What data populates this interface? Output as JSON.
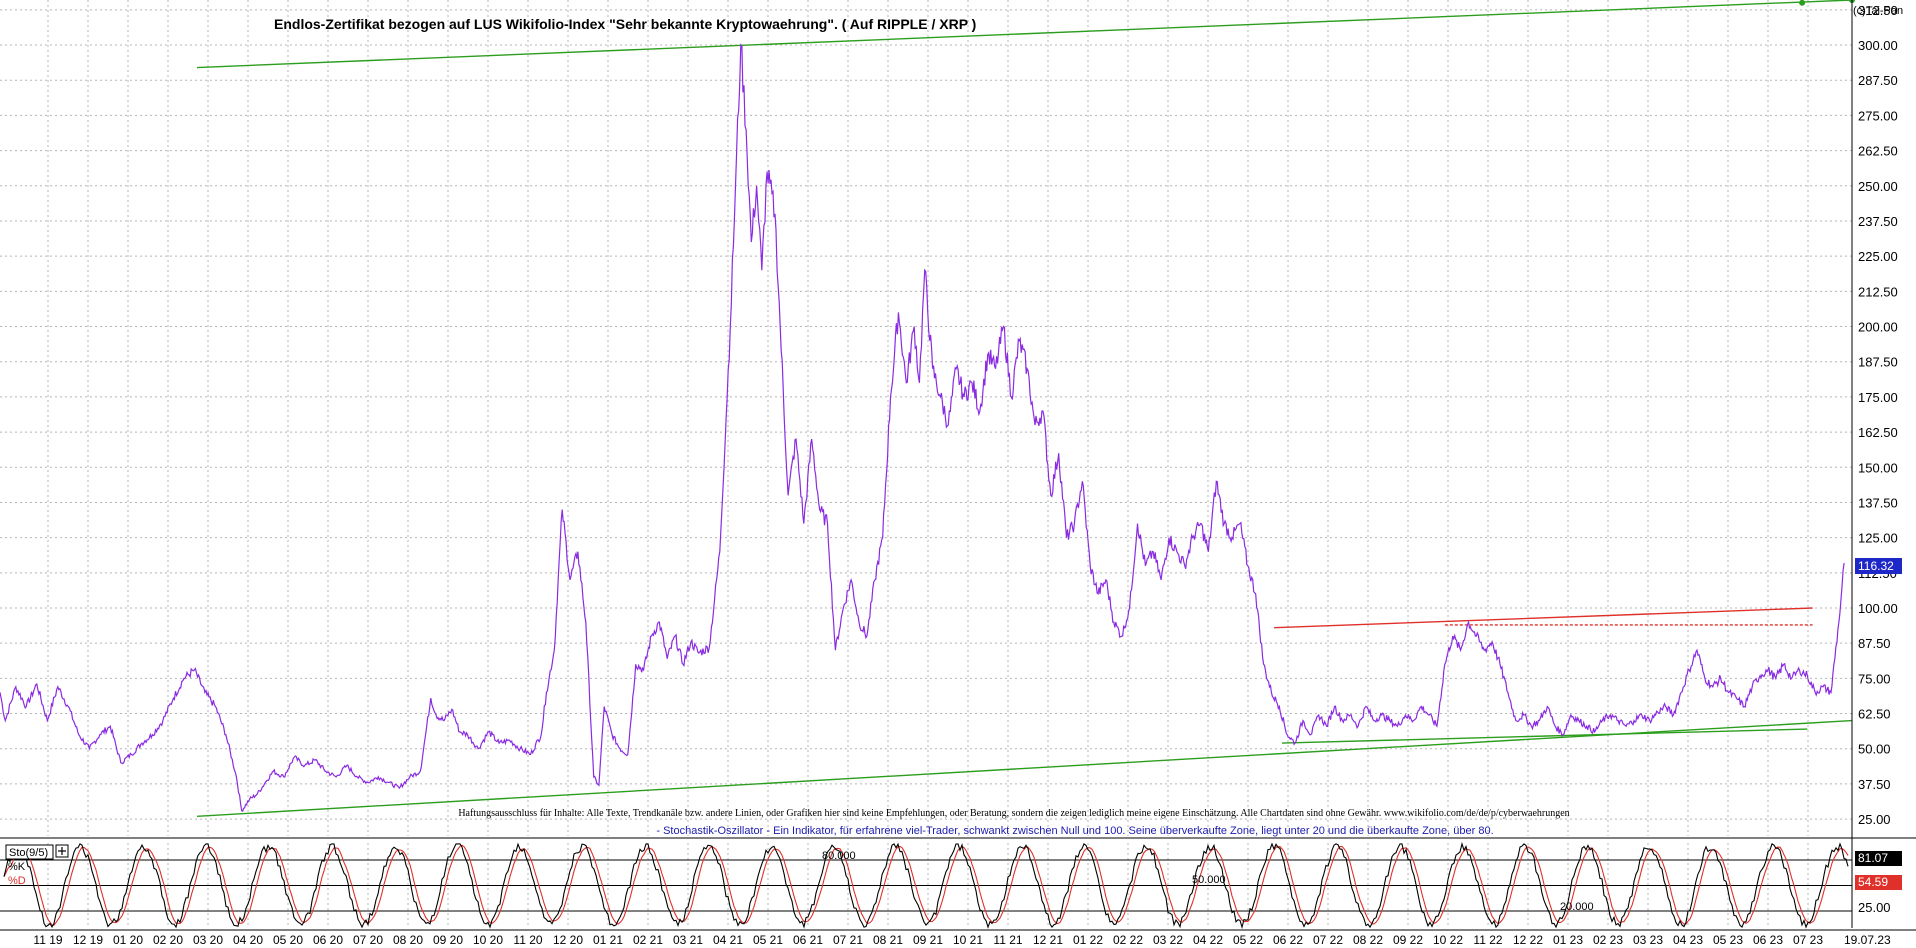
{
  "copyright": "(c)Tai-Pan",
  "chart_data": [
    {
      "type": "line",
      "title": "Endlos-Zertifikat bezogen auf LUS Wikifolio-Index \"Sehr bekannte Kryptowaehrung\". ( Auf RIPPLE / XRP )",
      "ylim": [
        19,
        316
      ],
      "y_ticks": [
        "312.50",
        "300.00",
        "287.50",
        "275.00",
        "262.50",
        "250.00",
        "237.50",
        "225.00",
        "212.50",
        "200.00",
        "187.50",
        "175.00",
        "162.50",
        "150.00",
        "137.50",
        "125.00",
        "112.50",
        "100.00",
        "87.50",
        "75.00",
        "62.50",
        "50.00",
        "37.50",
        "25.00"
      ],
      "x_ticks": [
        "11 19",
        "12 19",
        "01 20",
        "02 20",
        "03 20",
        "04 20",
        "05 20",
        "06 20",
        "07 20",
        "08 20",
        "09 20",
        "10 20",
        "11 20",
        "12 20",
        "01 21",
        "02 21",
        "03 21",
        "04 21",
        "05 21",
        "06 21",
        "07 21",
        "08 21",
        "09 21",
        "10 21",
        "11 21",
        "12 21",
        "01 22",
        "02 22",
        "03 22",
        "04 22",
        "05 22",
        "06 22",
        "07 22",
        "08 22",
        "09 22",
        "10 22",
        "11 22",
        "12 22",
        "01 23",
        "02 23",
        "03 23",
        "04 23",
        "05 23",
        "06 23",
        "07 23"
      ],
      "x_end_label": "19.07.23",
      "last_value": "116.32",
      "grid": true,
      "series": [],
      "price": [
        [
          0,
          70
        ],
        [
          2,
          60
        ],
        [
          6,
          72
        ],
        [
          10,
          65
        ],
        [
          14,
          73
        ],
        [
          18,
          60
        ],
        [
          22,
          72
        ],
        [
          26,
          65
        ],
        [
          30,
          55
        ],
        [
          34,
          50
        ],
        [
          38,
          55
        ],
        [
          42,
          58
        ],
        [
          46,
          45
        ],
        [
          50,
          48
        ],
        [
          54,
          52
        ],
        [
          58,
          55
        ],
        [
          62,
          60
        ],
        [
          66,
          68
        ],
        [
          70,
          75
        ],
        [
          74,
          78
        ],
        [
          78,
          70
        ],
        [
          82,
          65
        ],
        [
          86,
          55
        ],
        [
          90,
          40
        ],
        [
          92,
          28
        ],
        [
          95,
          32
        ],
        [
          98,
          34
        ],
        [
          101,
          38
        ],
        [
          104,
          42
        ],
        [
          108,
          40
        ],
        [
          112,
          47
        ],
        [
          116,
          44
        ],
        [
          120,
          46
        ],
        [
          124,
          42
        ],
        [
          128,
          40
        ],
        [
          132,
          44
        ],
        [
          136,
          40
        ],
        [
          140,
          38
        ],
        [
          144,
          40
        ],
        [
          148,
          38
        ],
        [
          152,
          36
        ],
        [
          156,
          40
        ],
        [
          160,
          42
        ],
        [
          162,
          55
        ],
        [
          164,
          68
        ],
        [
          166,
          62
        ],
        [
          169,
          60
        ],
        [
          172,
          64
        ],
        [
          175,
          56
        ],
        [
          178,
          55
        ],
        [
          182,
          50
        ],
        [
          186,
          56
        ],
        [
          190,
          52
        ],
        [
          194,
          53
        ],
        [
          198,
          50
        ],
        [
          202,
          48
        ],
        [
          206,
          55
        ],
        [
          208,
          70
        ],
        [
          211,
          85
        ],
        [
          214,
          135
        ],
        [
          217,
          110
        ],
        [
          220,
          120
        ],
        [
          223,
          95
        ],
        [
          226,
          40
        ],
        [
          228,
          37
        ],
        [
          230,
          65
        ],
        [
          233,
          55
        ],
        [
          236,
          50
        ],
        [
          239,
          48
        ],
        [
          242,
          80
        ],
        [
          245,
          78
        ],
        [
          248,
          90
        ],
        [
          251,
          95
        ],
        [
          254,
          82
        ],
        [
          257,
          90
        ],
        [
          260,
          80
        ],
        [
          263,
          88
        ],
        [
          266,
          84
        ],
        [
          270,
          86
        ],
        [
          274,
          120
        ],
        [
          278,
          200
        ],
        [
          280,
          250
        ],
        [
          282,
          300
        ],
        [
          284,
          270
        ],
        [
          286,
          230
        ],
        [
          288,
          250
        ],
        [
          290,
          220
        ],
        [
          292,
          255
        ],
        [
          295,
          240
        ],
        [
          297,
          200
        ],
        [
          300,
          140
        ],
        [
          303,
          160
        ],
        [
          306,
          130
        ],
        [
          309,
          160
        ],
        [
          312,
          135
        ],
        [
          315,
          130
        ],
        [
          318,
          85
        ],
        [
          321,
          100
        ],
        [
          324,
          110
        ],
        [
          327,
          95
        ],
        [
          330,
          90
        ],
        [
          333,
          110
        ],
        [
          336,
          125
        ],
        [
          339,
          175
        ],
        [
          342,
          205
        ],
        [
          345,
          180
        ],
        [
          348,
          200
        ],
        [
          350,
          180
        ],
        [
          352,
          220
        ],
        [
          355,
          185
        ],
        [
          358,
          175
        ],
        [
          361,
          165
        ],
        [
          364,
          185
        ],
        [
          367,
          175
        ],
        [
          370,
          180
        ],
        [
          373,
          170
        ],
        [
          376,
          190
        ],
        [
          379,
          185
        ],
        [
          382,
          200
        ],
        [
          385,
          175
        ],
        [
          388,
          195
        ],
        [
          391,
          185
        ],
        [
          394,
          165
        ],
        [
          397,
          170
        ],
        [
          400,
          140
        ],
        [
          403,
          155
        ],
        [
          406,
          125
        ],
        [
          409,
          130
        ],
        [
          412,
          145
        ],
        [
          415,
          115
        ],
        [
          418,
          105
        ],
        [
          421,
          110
        ],
        [
          424,
          95
        ],
        [
          427,
          90
        ],
        [
          430,
          100
        ],
        [
          433,
          130
        ],
        [
          436,
          115
        ],
        [
          439,
          120
        ],
        [
          442,
          110
        ],
        [
          445,
          125
        ],
        [
          448,
          120
        ],
        [
          451,
          115
        ],
        [
          454,
          125
        ],
        [
          457,
          130
        ],
        [
          460,
          120
        ],
        [
          463,
          145
        ],
        [
          466,
          130
        ],
        [
          469,
          125
        ],
        [
          472,
          130
        ],
        [
          475,
          115
        ],
        [
          478,
          105
        ],
        [
          481,
          80
        ],
        [
          484,
          70
        ],
        [
          487,
          65
        ],
        [
          490,
          55
        ],
        [
          493,
          52
        ],
        [
          496,
          60
        ],
        [
          499,
          55
        ],
        [
          502,
          62
        ],
        [
          505,
          58
        ],
        [
          508,
          65
        ],
        [
          511,
          60
        ],
        [
          514,
          62
        ],
        [
          517,
          58
        ],
        [
          520,
          65
        ],
        [
          523,
          60
        ],
        [
          526,
          62
        ],
        [
          529,
          60
        ],
        [
          532,
          58
        ],
        [
          535,
          62
        ],
        [
          538,
          60
        ],
        [
          541,
          65
        ],
        [
          544,
          62
        ],
        [
          547,
          58
        ],
        [
          550,
          80
        ],
        [
          553,
          90
        ],
        [
          556,
          85
        ],
        [
          559,
          95
        ],
        [
          562,
          90
        ],
        [
          565,
          85
        ],
        [
          568,
          88
        ],
        [
          571,
          80
        ],
        [
          574,
          70
        ],
        [
          577,
          60
        ],
        [
          580,
          62
        ],
        [
          583,
          58
        ],
        [
          586,
          60
        ],
        [
          589,
          65
        ],
        [
          592,
          58
        ],
        [
          595,
          55
        ],
        [
          598,
          62
        ],
        [
          601,
          60
        ],
        [
          604,
          58
        ],
        [
          607,
          56
        ],
        [
          610,
          60
        ],
        [
          613,
          62
        ],
        [
          616,
          60
        ],
        [
          619,
          58
        ],
        [
          622,
          60
        ],
        [
          625,
          62
        ],
        [
          628,
          60
        ],
        [
          631,
          63
        ],
        [
          634,
          65
        ],
        [
          637,
          62
        ],
        [
          640,
          70
        ],
        [
          643,
          78
        ],
        [
          646,
          85
        ],
        [
          649,
          75
        ],
        [
          652,
          72
        ],
        [
          655,
          75
        ],
        [
          658,
          70
        ],
        [
          661,
          68
        ],
        [
          664,
          65
        ],
        [
          667,
          72
        ],
        [
          670,
          76
        ],
        [
          673,
          78
        ],
        [
          676,
          75
        ],
        [
          679,
          80
        ],
        [
          682,
          75
        ],
        [
          685,
          78
        ],
        [
          688,
          76
        ],
        [
          691,
          70
        ],
        [
          694,
          72
        ],
        [
          697,
          70
        ],
        [
          700,
          95
        ],
        [
          702,
          116
        ]
      ],
      "trend_lines": [
        {
          "name": "upper-green",
          "color": "#2c9e1e",
          "from": [
            75,
            292
          ],
          "to": [
            705,
            316
          ]
        },
        {
          "name": "lower-green",
          "color": "#2c9e1e",
          "from": [
            75,
            26
          ],
          "to": [
            705,
            60
          ]
        },
        {
          "name": "lower-green-2",
          "color": "#2c9e1e",
          "from": [
            488,
            52
          ],
          "to": [
            688,
            57
          ]
        },
        {
          "name": "upper-red",
          "color": "#e0302a",
          "from": [
            485,
            93
          ],
          "to": [
            690,
            100
          ]
        },
        {
          "name": "red-dotted",
          "color": "#e0302a",
          "from": [
            550,
            94
          ],
          "to": [
            690,
            94
          ],
          "dashed": true
        }
      ],
      "disclaimer": "Haftungsausschluss für Inhalte: Alle Texte, Trendkanäle bzw. andere Linien, oder Grafiken hier sind keine Empfehlungen, oder Beratung, sondern die zeigen lediglich meine eigene Einschätzung. Alle Chartdaten sind ohne Gewähr.  www.wikifolio.com/de/de/p/cyberwaehrungen",
      "colors": {
        "price": "#8a2be2",
        "grid": "#b5b5b5",
        "badge": "#1e28c8"
      }
    },
    {
      "type": "line",
      "panel_label": "Sto(9/5)",
      "description": "- Stochastik-Oszillator - Ein Indikator, für erfahrene viel-Trader, schwankt zwischen Null und 100. Seine überverkaufte Zone, liegt unter 20 und die überkaufte Zone, über 80.",
      "ylim": [
        0,
        100
      ],
      "levels": [
        {
          "value": 80,
          "label": "80.000"
        },
        {
          "value": 50,
          "label": "50.000"
        },
        {
          "value": 20,
          "label": "20.000"
        }
      ],
      "y_tick": "25.00",
      "series": [
        {
          "name": "%K",
          "color": "#000000",
          "last": "81.07"
        },
        {
          "name": "%D",
          "color": "#e0302a",
          "last": "54.59"
        }
      ]
    }
  ]
}
